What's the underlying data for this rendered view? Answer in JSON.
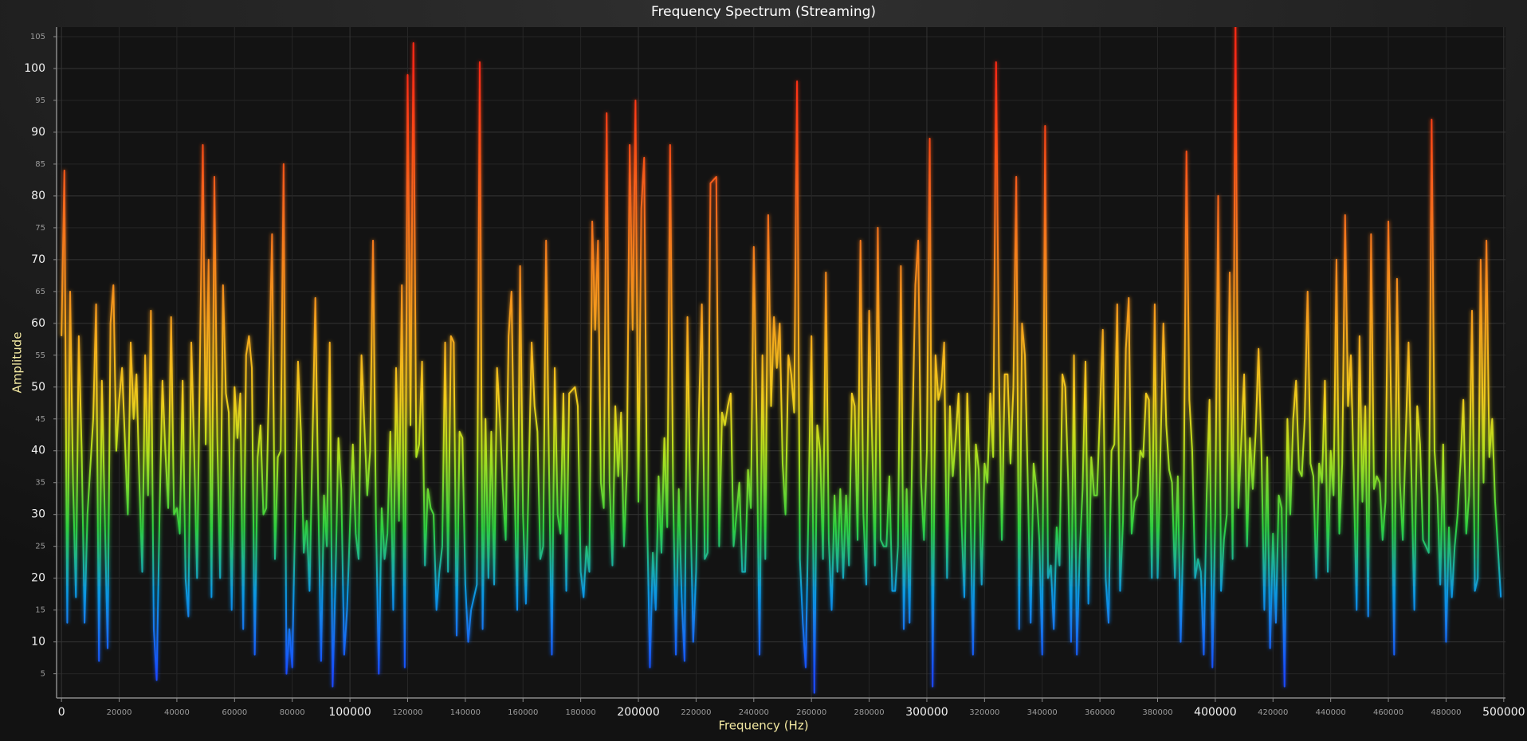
{
  "chart_data": {
    "type": "line",
    "title": "Frequency Spectrum (Streaming)",
    "x_label": "Frequency (Hz)",
    "y_label": "Amplitude",
    "xlim": [
      -1700,
      500600
    ],
    "ylim": [
      1.2,
      106.5
    ],
    "xticks": [
      0,
      20000,
      40000,
      60000,
      80000,
      100000,
      120000,
      140000,
      160000,
      180000,
      200000,
      220000,
      240000,
      260000,
      280000,
      300000,
      320000,
      340000,
      360000,
      380000,
      400000,
      420000,
      440000,
      460000,
      480000,
      500000
    ],
    "yticks": [
      5,
      10,
      15,
      20,
      25,
      30,
      35,
      40,
      45,
      50,
      55,
      60,
      65,
      70,
      75,
      80,
      85,
      90,
      95,
      100,
      105
    ],
    "grid": true,
    "color_scale": [
      {
        "value": 5,
        "color": "#1a4cff"
      },
      {
        "value": 18,
        "color": "#0f9ae0"
      },
      {
        "value": 28,
        "color": "#2fd040"
      },
      {
        "value": 40,
        "color": "#b4e01e"
      },
      {
        "value": 48,
        "color": "#f0cc1e"
      },
      {
        "value": 62,
        "color": "#f49a1e"
      },
      {
        "value": 78,
        "color": "#f46a1c"
      },
      {
        "value": 100,
        "color": "#ff2a12"
      }
    ],
    "x": [
      0,
      1000,
      2000,
      3000,
      4000,
      5000,
      6000,
      7000,
      8000,
      9000,
      11000,
      12000,
      13000,
      14000,
      15000,
      16000,
      17000,
      18000,
      19000,
      20000,
      21000,
      23000,
      24000,
      25000,
      26000,
      27000,
      28000,
      29000,
      30000,
      31000,
      32000,
      33000,
      34000,
      35000,
      36000,
      37000,
      38000,
      39000,
      40000,
      41000,
      42000,
      43000,
      44000,
      45000,
      46000,
      47000,
      49000,
      50000,
      51000,
      52000,
      53000,
      54000,
      55000,
      56000,
      57000,
      58000,
      59000,
      60000,
      61000,
      62000,
      63000,
      64000,
      65000,
      66000,
      67000,
      68000,
      69000,
      70000,
      71000,
      73000,
      74000,
      75000,
      76000,
      77000,
      78000,
      79000,
      80000,
      81000,
      82000,
      83000,
      84000,
      85000,
      86000,
      88000,
      89000,
      90000,
      91000,
      92000,
      93000,
      94000,
      95000,
      96000,
      97000,
      98000,
      99000,
      101000,
      102000,
      103000,
      104000,
      105000,
      106000,
      107000,
      108000,
      109000,
      110000,
      111000,
      112000,
      113000,
      114000,
      115000,
      116000,
      117000,
      118000,
      119000,
      120000,
      121000,
      122000,
      123000,
      124000,
      125000,
      126000,
      127000,
      128000,
      129000,
      130000,
      131000,
      132000,
      133000,
      134000,
      135000,
      136000,
      137000,
      138000,
      139000,
      140000,
      141000,
      142000,
      144000,
      145000,
      146000,
      147000,
      148000,
      149000,
      150000,
      151000,
      152000,
      153000,
      154000,
      155000,
      156000,
      157000,
      158000,
      159000,
      160000,
      161000,
      163000,
      164000,
      165000,
      166000,
      167000,
      168000,
      169000,
      170000,
      171000,
      172000,
      173000,
      174000,
      175000,
      176000,
      178000,
      179000,
      180000,
      181000,
      182000,
      183000,
      184000,
      185000,
      186000,
      187000,
      188000,
      189000,
      190000,
      191000,
      192000,
      193000,
      194000,
      195000,
      196000,
      197000,
      198000,
      199000,
      200000,
      201000,
      202000,
      203000,
      204000,
      205000,
      206000,
      207000,
      208000,
      209000,
      210000,
      211000,
      212000,
      213000,
      214000,
      215000,
      216000,
      217000,
      218000,
      219000,
      220000,
      221000,
      222000,
      223000,
      224000,
      225000,
      227000,
      228000,
      229000,
      230000,
      231000,
      232000,
      233000,
      234000,
      235000,
      236000,
      237000,
      238000,
      239000,
      240000,
      241000,
      242000,
      243000,
      244000,
      245000,
      246000,
      247000,
      248000,
      249000,
      250000,
      251000,
      252000,
      253000,
      254000,
      255000,
      256000,
      257000,
      258000,
      259000,
      260000,
      261000,
      262000,
      263000,
      264000,
      265000,
      266000,
      267000,
      268000,
      269000,
      270000,
      271000,
      272000,
      273000,
      274000,
      275000,
      276000,
      277000,
      278000,
      279000,
      280000,
      282000,
      283000,
      284000,
      285000,
      286000,
      287000,
      288000,
      289000,
      290000,
      291000,
      292000,
      293000,
      294000,
      295000,
      296000,
      297000,
      298000,
      299000,
      300000,
      301000,
      302000,
      303000,
      304000,
      305000,
      306000,
      307000,
      308000,
      309000,
      310000,
      311000,
      312000,
      313000,
      314000,
      315000,
      316000,
      317000,
      318000,
      319000,
      320000,
      321000,
      322000,
      323000,
      324000,
      325000,
      326000,
      327000,
      328000,
      329000,
      330000,
      331000,
      332000,
      333000,
      334000,
      335000,
      336000,
      337000,
      338000,
      339000,
      340000,
      341000,
      342000,
      343000,
      344000,
      345000,
      346000,
      347000,
      348000,
      349000,
      350000,
      351000,
      352000,
      353000,
      354000,
      355000,
      356000,
      357000,
      358000,
      359000,
      361000,
      362000,
      363000,
      364000,
      365000,
      366000,
      367000,
      368000,
      369000,
      370000,
      371000,
      372000,
      373000,
      374000,
      375000,
      376000,
      377000,
      378000,
      379000,
      380000,
      381000,
      382000,
      383000,
      384000,
      385000,
      386000,
      387000,
      388000,
      389000,
      390000,
      391000,
      392000,
      393000,
      394000,
      395000,
      396000,
      397000,
      398000,
      399000,
      400000,
      401000,
      402000,
      403000,
      404000,
      405000,
      406000,
      407000,
      408000,
      410000,
      411000,
      412000,
      413000,
      414000,
      415000,
      416000,
      417000,
      418000,
      419000,
      420000,
      421000,
      422000,
      423000,
      424000,
      425000,
      426000,
      427000,
      428000,
      429000,
      430000,
      431000,
      432000,
      433000,
      434000,
      435000,
      436000,
      437000,
      438000,
      439000,
      440000,
      441000,
      442000,
      443000,
      444000,
      445000,
      446000,
      447000,
      448000,
      449000,
      450000,
      451000,
      452000,
      453000,
      454000,
      455000,
      456000,
      457000,
      458000,
      459000,
      460000,
      461000,
      462000,
      463000,
      464000,
      465000,
      466000,
      467000,
      468000,
      469000,
      470000,
      471000,
      472000,
      473000,
      474000,
      475000,
      476000,
      477000,
      478000,
      479000,
      480000,
      481000,
      482000,
      483000,
      484000,
      485000,
      486000,
      487000,
      488000,
      489000,
      490000,
      491000,
      492000,
      493000,
      494000,
      495000,
      496000,
      497000,
      499000
    ],
    "values": [
      58,
      84,
      13,
      65,
      35,
      17,
      58,
      40,
      13,
      30,
      45,
      63,
      7,
      51,
      30,
      9,
      60,
      66,
      40,
      48,
      53,
      30,
      57,
      45,
      52,
      35,
      21,
      55,
      33,
      62,
      12,
      4,
      30,
      51,
      40,
      31,
      61,
      30,
      31,
      27,
      51,
      20,
      14,
      57,
      40,
      20,
      88,
      41,
      70,
      17,
      83,
      42,
      20,
      66,
      49,
      46,
      15,
      50,
      42,
      49,
      12,
      55,
      58,
      53,
      8,
      39,
      44,
      30,
      31,
      74,
      23,
      39,
      40,
      85,
      5,
      12,
      6,
      30,
      54,
      43,
      24,
      29,
      18,
      64,
      33,
      7,
      33,
      25,
      57,
      3,
      20,
      42,
      34,
      8,
      15,
      41,
      27,
      23,
      55,
      44,
      33,
      40,
      73,
      30,
      5,
      31,
      23,
      27,
      43,
      15,
      53,
      29,
      66,
      6,
      99,
      44,
      104,
      39,
      41,
      54,
      22,
      34,
      31,
      30,
      15,
      21,
      25,
      57,
      21,
      58,
      57,
      11,
      43,
      42,
      19,
      10,
      15,
      19,
      101,
      12,
      45,
      20,
      43,
      19,
      53,
      45,
      34,
      26,
      58,
      65,
      36,
      15,
      69,
      30,
      16,
      57,
      47,
      43,
      23,
      25,
      73,
      38,
      8,
      53,
      30,
      27,
      49,
      18,
      49,
      50,
      47,
      21,
      17,
      25,
      21,
      76,
      59,
      73,
      35,
      31,
      93,
      35,
      22,
      47,
      36,
      46,
      25,
      37,
      88,
      59,
      95,
      32,
      78,
      86,
      30,
      6,
      24,
      15,
      36,
      24,
      42,
      28,
      88,
      35,
      8,
      34,
      17,
      7,
      61,
      32,
      10,
      21,
      46,
      63,
      23,
      24,
      82,
      83,
      25,
      46,
      44,
      47,
      49,
      25,
      30,
      35,
      21,
      21,
      37,
      31,
      72,
      44,
      8,
      55,
      23,
      77,
      47,
      61,
      53,
      60,
      38,
      30,
      55,
      52,
      46,
      98,
      23,
      13,
      6,
      32,
      58,
      2,
      44,
      40,
      23,
      68,
      26,
      15,
      33,
      21,
      34,
      20,
      33,
      22,
      49,
      47,
      26,
      73,
      30,
      19,
      62,
      22,
      75,
      26,
      25,
      25,
      36,
      18,
      18,
      25,
      69,
      12,
      34,
      13,
      43,
      66,
      73,
      35,
      26,
      40,
      89,
      3,
      55,
      48,
      50,
      57,
      20,
      47,
      36,
      42,
      49,
      29,
      17,
      49,
      34,
      8,
      41,
      37,
      19,
      38,
      35,
      49,
      39,
      101,
      53,
      26,
      52,
      52,
      38,
      50,
      83,
      12,
      60,
      55,
      35,
      13,
      38,
      34,
      26,
      8,
      91,
      20,
      22,
      12,
      28,
      22,
      52,
      50,
      35,
      10,
      55,
      8,
      24,
      34,
      54,
      16,
      39,
      33,
      33,
      59,
      20,
      13,
      40,
      41,
      63,
      18,
      29,
      56,
      64,
      27,
      32,
      33,
      40,
      39,
      49,
      48,
      20,
      63,
      20,
      40,
      60,
      44,
      37,
      35,
      20,
      36,
      10,
      29,
      87,
      48,
      40,
      20,
      23,
      21,
      8,
      33,
      48,
      6,
      30,
      80,
      18,
      26,
      30,
      68,
      23,
      108,
      31,
      52,
      25,
      42,
      34,
      43,
      56,
      40,
      15,
      39,
      9,
      27,
      13,
      33,
      31,
      3,
      45,
      30,
      45,
      51,
      37,
      36,
      45,
      65,
      38,
      36,
      20,
      38,
      35,
      51,
      21,
      40,
      33,
      70,
      27,
      38,
      77,
      47,
      55,
      36,
      15,
      58,
      32,
      47,
      14,
      74,
      34,
      36,
      35,
      26,
      32,
      76,
      45,
      8,
      67,
      35,
      26,
      42,
      57,
      36,
      15,
      47,
      41,
      26,
      25,
      24,
      92,
      40,
      33,
      19,
      41,
      10,
      28,
      17,
      25,
      30,
      38,
      48,
      27,
      33,
      62,
      18,
      20,
      70,
      35,
      73,
      39,
      45,
      32,
      17
    ]
  }
}
